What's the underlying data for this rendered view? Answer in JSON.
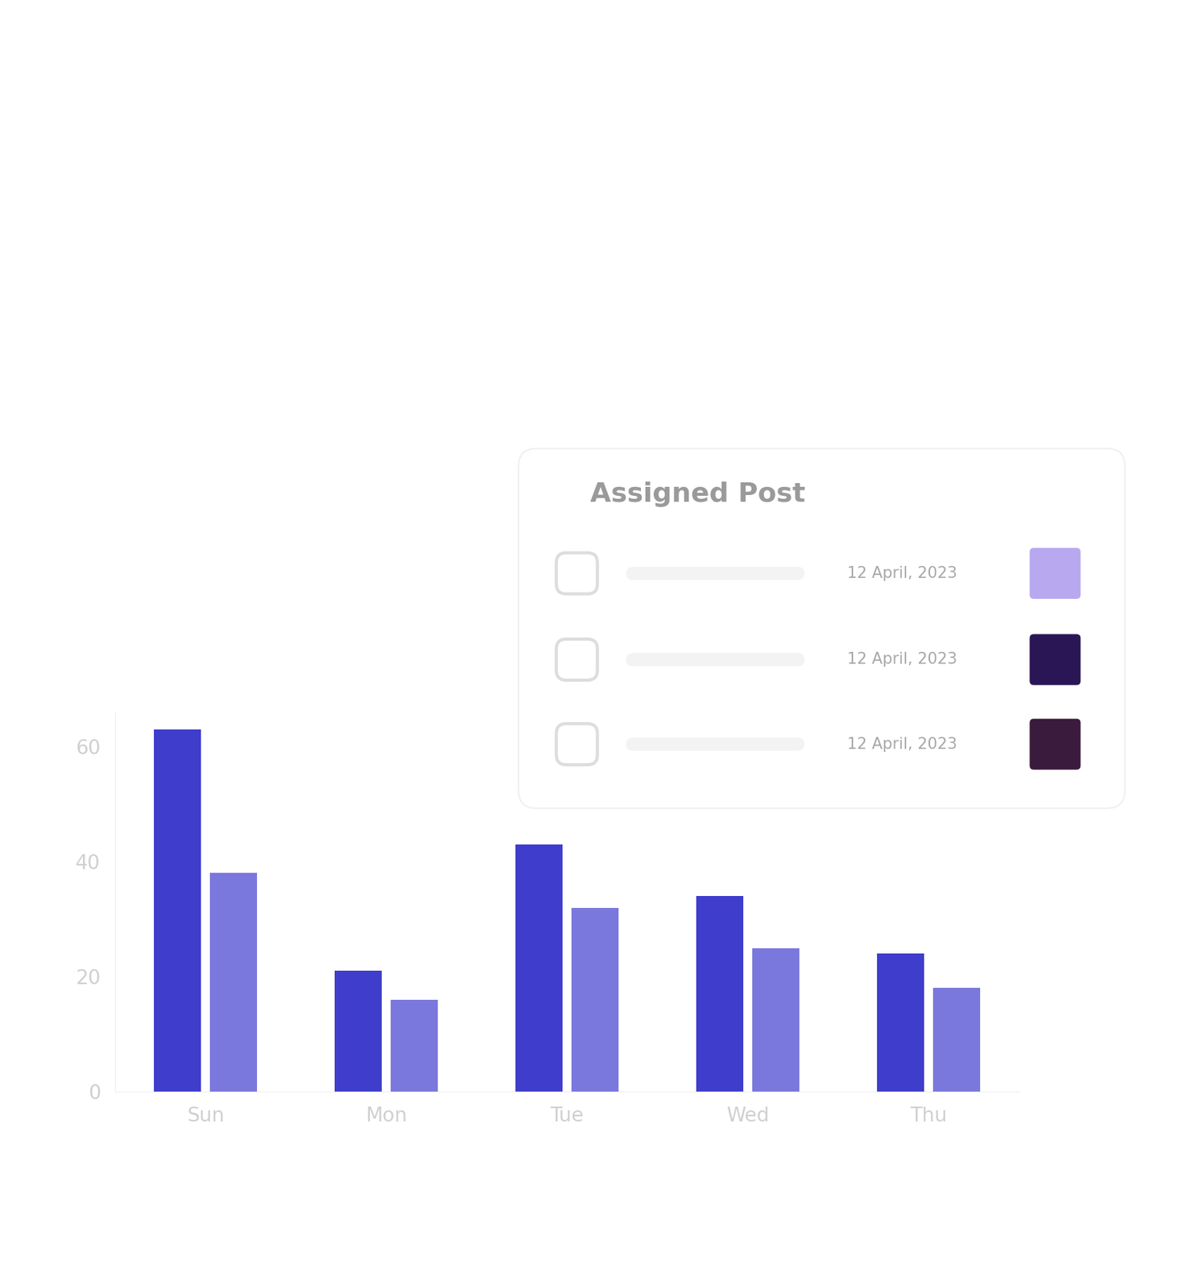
{
  "chart_data": {
    "type": "bar",
    "categories": [
      "Sun",
      "Mon",
      "Tue",
      "Wed",
      "Thu"
    ],
    "series": [
      {
        "color": "#3f3dcc",
        "values": [
          63,
          21,
          43,
          34,
          24
        ]
      },
      {
        "color": "#7a78dc",
        "values": [
          38,
          16,
          32,
          25,
          18
        ]
      }
    ],
    "ylim": [
      0,
      66
    ],
    "yticks": [
      0,
      20,
      40,
      60
    ],
    "grid": false
  },
  "card": {
    "title": "Assigned Post",
    "rows": [
      {
        "date": "12 April, 2023"
      },
      {
        "date": "12 April, 2023"
      },
      {
        "date": "12 April, 2023"
      }
    ]
  }
}
